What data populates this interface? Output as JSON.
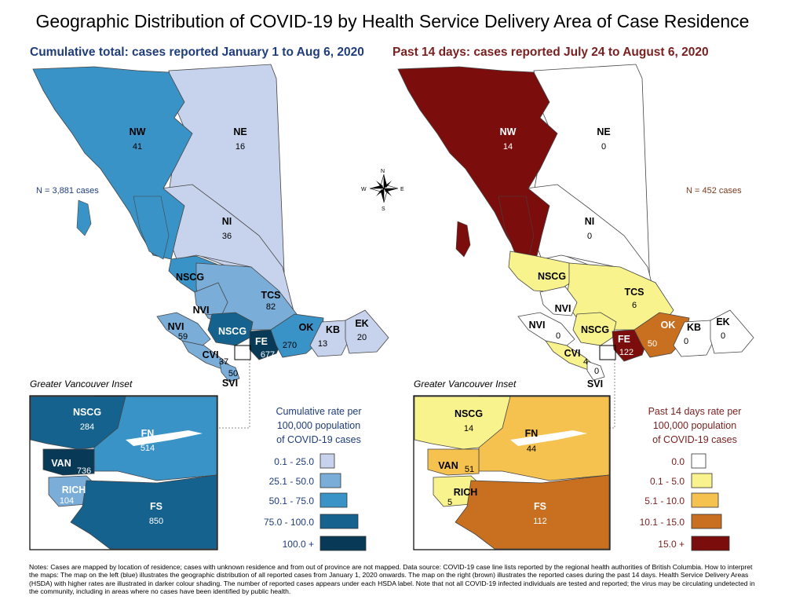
{
  "title": "Geographic Distribution of COVID-19 by Health Service Delivery Area of Case Residence",
  "left_map": {
    "subtitle": "Cumulative total: cases reported January 1 to Aug 6, 2020",
    "n_label": "N = 3,881 cases",
    "regions": [
      {
        "code": "NW",
        "value": "41",
        "color": "#3a93c7"
      },
      {
        "code": "NE",
        "value": "16",
        "color": "#c7d3ec"
      },
      {
        "code": "NI",
        "value": "36",
        "color": "#c7d3ec"
      },
      {
        "code": "NSCG",
        "value": "",
        "color": "#3a93c7"
      },
      {
        "code": "TCS",
        "value": "82",
        "color": "#7aaed8"
      },
      {
        "code": "NVI",
        "value": "",
        "color": "#7aaed8"
      },
      {
        "code": "NVI",
        "value": "59",
        "color": "#7aaed8"
      },
      {
        "code": "NSCG",
        "value": "",
        "color": "#14628d"
      },
      {
        "code": "FE",
        "value": "677",
        "color": "#083a58"
      },
      {
        "code": "OK",
        "value": "270",
        "color": "#3a93c7"
      },
      {
        "code": "KB",
        "value": "13",
        "color": "#c7d3ec"
      },
      {
        "code": "EK",
        "value": "20",
        "color": "#c7d3ec"
      },
      {
        "code": "CVI",
        "value": "37",
        "color": "#7aaed8"
      },
      {
        "code": "SVI",
        "value": "50",
        "color": "#7aaed8"
      }
    ],
    "inset_title": "Greater Vancouver Inset",
    "inset_regions": [
      {
        "code": "NSCG",
        "value": "284"
      },
      {
        "code": "FN",
        "value": "514"
      },
      {
        "code": "VAN",
        "value": "736"
      },
      {
        "code": "RICH",
        "value": "104"
      },
      {
        "code": "FS",
        "value": "850"
      }
    ],
    "legend_title": [
      "Cumulative rate per",
      "100,000 population",
      "of COVID-19 cases"
    ],
    "legend": [
      {
        "label": "0.1 - 25.0",
        "color": "#c7d3ec"
      },
      {
        "label": "25.1 - 50.0",
        "color": "#7aaed8"
      },
      {
        "label": "50.1 - 75.0",
        "color": "#3a93c7"
      },
      {
        "label": "75.0 - 100.0",
        "color": "#14628d"
      },
      {
        "label": "100.0 +",
        "color": "#083a58"
      }
    ]
  },
  "right_map": {
    "subtitle": "Past 14 days: cases reported July 24 to  August 6, 2020",
    "n_label": "N = 452 cases",
    "regions": [
      {
        "code": "NW",
        "value": "14",
        "color": "#7b0d0d"
      },
      {
        "code": "NE",
        "value": "0",
        "color": "#ffffff"
      },
      {
        "code": "NI",
        "value": "0",
        "color": "#ffffff"
      },
      {
        "code": "NSCG",
        "value": "",
        "color": "#f9f38e"
      },
      {
        "code": "TCS",
        "value": "6",
        "color": "#f9f38e"
      },
      {
        "code": "NVI",
        "value": "",
        "color": "#ffffff"
      },
      {
        "code": "NVI",
        "value": "0",
        "color": "#ffffff"
      },
      {
        "code": "NSCG",
        "value": "",
        "color": "#f9f38e"
      },
      {
        "code": "FE",
        "value": "122",
        "color": "#7b0d0d"
      },
      {
        "code": "OK",
        "value": "50",
        "color": "#c8701f"
      },
      {
        "code": "KB",
        "value": "0",
        "color": "#ffffff"
      },
      {
        "code": "EK",
        "value": "0",
        "color": "#ffffff"
      },
      {
        "code": "CVI",
        "value": "4",
        "color": "#f9f38e"
      },
      {
        "code": "SVI",
        "value": "0",
        "color": "#ffffff"
      }
    ],
    "inset_title": "Greater Vancouver Inset",
    "inset_regions": [
      {
        "code": "NSCG",
        "value": "14"
      },
      {
        "code": "FN",
        "value": "44"
      },
      {
        "code": "VAN",
        "value": "51"
      },
      {
        "code": "RICH",
        "value": "5"
      },
      {
        "code": "FS",
        "value": "112"
      }
    ],
    "legend_title": [
      "Past 14 days rate per",
      "100,000 population",
      "of COVID-19 cases"
    ],
    "legend": [
      {
        "label": "0.0",
        "color": "#ffffff"
      },
      {
        "label": "0.1 - 5.0",
        "color": "#f9f38e"
      },
      {
        "label": "5.1 - 10.0",
        "color": "#f5c14f"
      },
      {
        "label": "10.1 - 15.0",
        "color": "#c8701f"
      },
      {
        "label": "15.0 +",
        "color": "#7b0d0d"
      }
    ]
  },
  "compass": {
    "n": "N",
    "s": "S",
    "e": "E",
    "w": "W"
  },
  "notes": "Notes: Cases are mapped by location of residence; cases with unknown residence and from out of province are not mapped. Data source: COVID-19 case line lists reported by the regional health authorities of British Columbia. How to interpret the maps: The map on the left (blue) illustrates the geographic distribution of all reported cases from January 1, 2020 onwards. The map on the right (brown) illustrates the reported cases during the past 14 days. Health Service Delivery Areas (HSDA) with higher rates are illustrated in darker colour shading. The number of reported cases appears under each HSDA label. Note that not all COVID-19 infected individuals are tested and reported; the virus may be circulating undetected in the community, including in areas where no cases have been identified by public health."
}
